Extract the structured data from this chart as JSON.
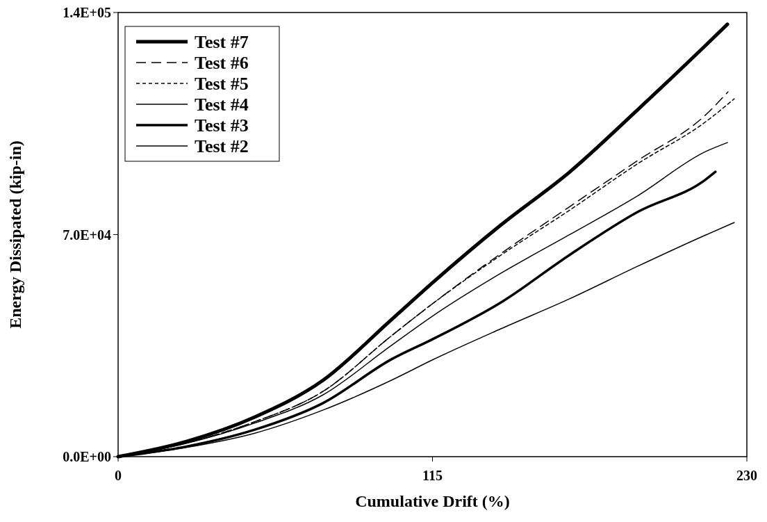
{
  "chart_data": {
    "type": "line",
    "xlabel": "Cumulative Drift (%)",
    "ylabel": "Energy Dissipated (kip-in)",
    "xlim": [
      0,
      230
    ],
    "xticks": [
      0,
      115,
      230
    ],
    "ylim": [
      0,
      140000
    ],
    "yticks": [
      {
        "value": 0,
        "label": "0.0E+00"
      },
      {
        "value": 70000,
        "label": "7.0E+04"
      },
      {
        "value": 140000,
        "label": "1.4E+05"
      }
    ],
    "legend": "top left",
    "series": [
      {
        "name": "Test #7",
        "color": "#000000",
        "line_style": "solid",
        "x": [
          0,
          25,
          50,
          75,
          100,
          115,
          140,
          165,
          190,
          215,
          222.9
        ],
        "values": [
          0,
          4800,
          12500,
          24100,
          43200,
          54800,
          73000,
          89600,
          109300,
          129700,
          136300
        ]
      },
      {
        "name": "Test #6",
        "color": "#000000",
        "line_style": "dashed",
        "x": [
          0,
          25,
          50,
          75,
          100,
          115,
          140,
          165,
          190,
          215,
          223.1
        ],
        "values": [
          0,
          4300,
          11000,
          20600,
          38100,
          48200,
          64000,
          78700,
          93300,
          107800,
          115000
        ]
      },
      {
        "name": "Test #5",
        "color": "#000000",
        "line_style": "dotted",
        "x": [
          0,
          25,
          50,
          75,
          100,
          115,
          140,
          165,
          190,
          215,
          225.4
        ],
        "values": [
          0,
          4300,
          11000,
          20600,
          38100,
          48200,
          63500,
          77600,
          92300,
          105600,
          112800
        ]
      },
      {
        "name": "Test #4",
        "color": "#000000",
        "line_style": "solid",
        "x": [
          0,
          25,
          50,
          75,
          100,
          115,
          140,
          165,
          190,
          215,
          222.9
        ],
        "values": [
          0,
          4200,
          10600,
          19500,
          35100,
          44300,
          57800,
          69900,
          82200,
          96200,
          99000
        ]
      },
      {
        "name": "Test #3",
        "color": "#000000",
        "line_style": "solid",
        "x": [
          0,
          25,
          50,
          75,
          100,
          115,
          140,
          165,
          190,
          215,
          218.5
        ],
        "values": [
          0,
          3200,
          8500,
          16900,
          30700,
          37000,
          48600,
          63500,
          77100,
          87400,
          89800
        ]
      },
      {
        "name": "Test #2",
        "color": "#000000",
        "line_style": "solid",
        "x": [
          0,
          25,
          50,
          75,
          100,
          115,
          140,
          165,
          190,
          215,
          225.4
        ],
        "values": [
          0,
          2900,
          7400,
          14700,
          24100,
          30500,
          40300,
          49700,
          60000,
          69900,
          73800
        ]
      }
    ]
  }
}
